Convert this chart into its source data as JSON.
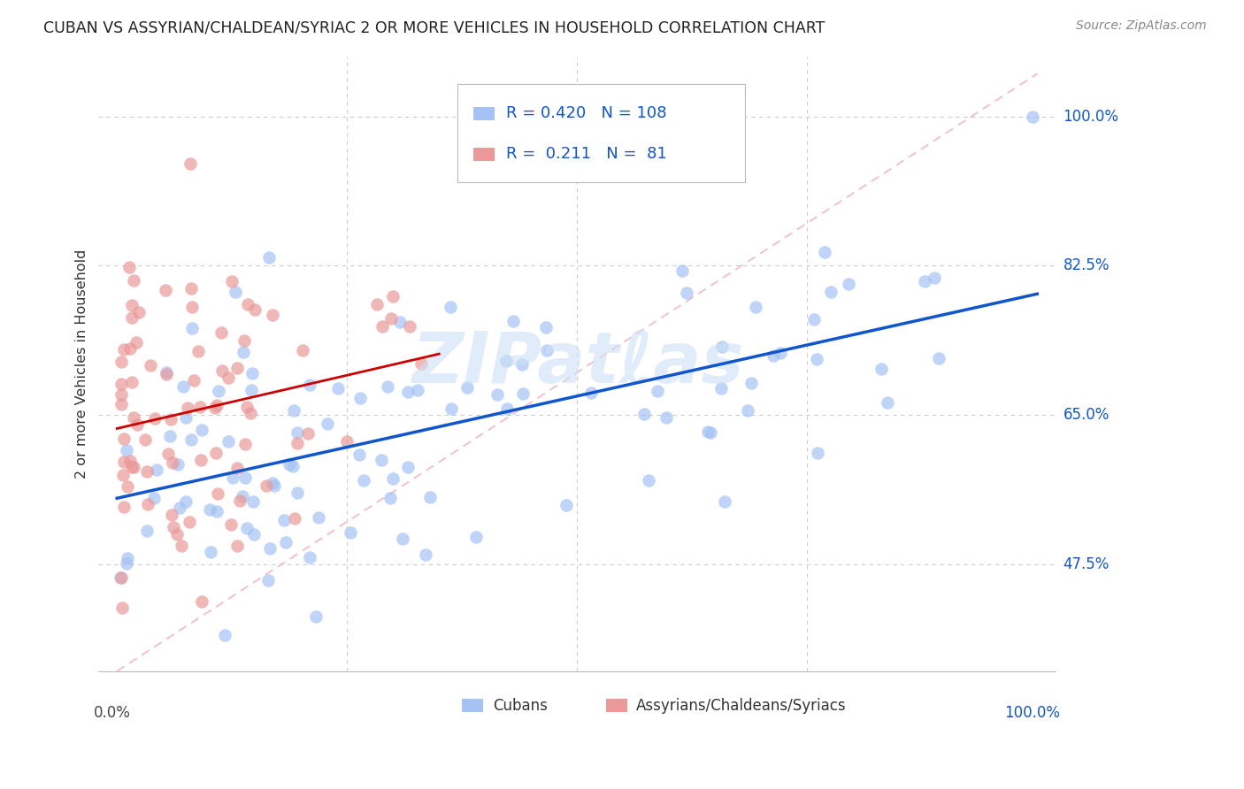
{
  "title": "CUBAN VS ASSYRIAN/CHALDEAN/SYRIAC 2 OR MORE VEHICLES IN HOUSEHOLD CORRELATION CHART",
  "source": "Source: ZipAtlas.com",
  "ylabel": "2 or more Vehicles in Household",
  "ytick_labels": [
    "47.5%",
    "65.0%",
    "82.5%",
    "100.0%"
  ],
  "ytick_values": [
    0.475,
    0.65,
    0.825,
    1.0
  ],
  "xmin": 0.0,
  "xmax": 1.0,
  "ymin": 0.35,
  "ymax": 1.05,
  "cuban_color": "#a4c2f4",
  "cuban_line_color": "#1155cc",
  "assyrian_color": "#ea9999",
  "assyrian_line_color": "#cc0000",
  "diag_color": "#f4b8c1",
  "cuban_R": 0.42,
  "cuban_N": 108,
  "assyrian_R": 0.211,
  "assyrian_N": 81,
  "legend_label_cuban": "Cubans",
  "legend_label_assyrian": "Assyrians/Chaldeans/Syriacs",
  "watermark": "ZIPatℓas",
  "legend_R_color": "#1155cc",
  "legend_box_color": "#cccccc",
  "right_label_color": "#1155cc",
  "grid_color": "#cccccc"
}
